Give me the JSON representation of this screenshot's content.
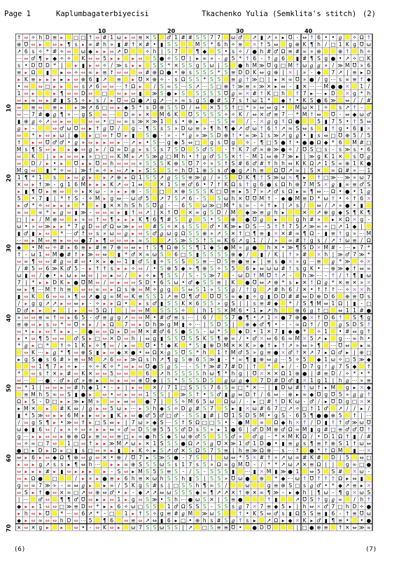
{
  "header": {
    "page": "Page 1",
    "title": "Kaplumbagaterbiyecisi",
    "designer": "Tkachenko Yulia (Semklita's stitch)",
    "sheet": "(2)"
  },
  "footer": {
    "left": "(6)",
    "right": "(7)"
  },
  "grid": {
    "columns": 50,
    "rows": 71,
    "col_labels": [
      "10",
      "20",
      "30",
      "40"
    ],
    "row_labels": [
      "10",
      "20",
      "30",
      "40",
      "50",
      "60",
      "70"
    ]
  },
  "colors": {
    "red": "#d7191c",
    "green": "#21a121",
    "blue": "#1f39d8",
    "yellow": "#f6f02a",
    "purple": "#b04ce0",
    "line": "#222222",
    "major_line": "#000000"
  },
  "symbol_set": [
    "▸",
    "⇔",
    "•",
    "✧",
    "●",
    "/",
    "S",
    "M",
    "-",
    "≡",
    "g",
    "ℊ",
    "1",
    "ω",
    "¶",
    "5",
    "h",
    "#",
    "Ω",
    "∞",
    "s",
    "↑",
    "↗",
    "◆",
    "K",
    "D",
    "♂",
    "Ʊ",
    "⊕",
    "✕",
    "»",
    "≫",
    "6",
    "7",
    "|",
    "*",
    "⋯",
    "□",
    "▮"
  ]
}
